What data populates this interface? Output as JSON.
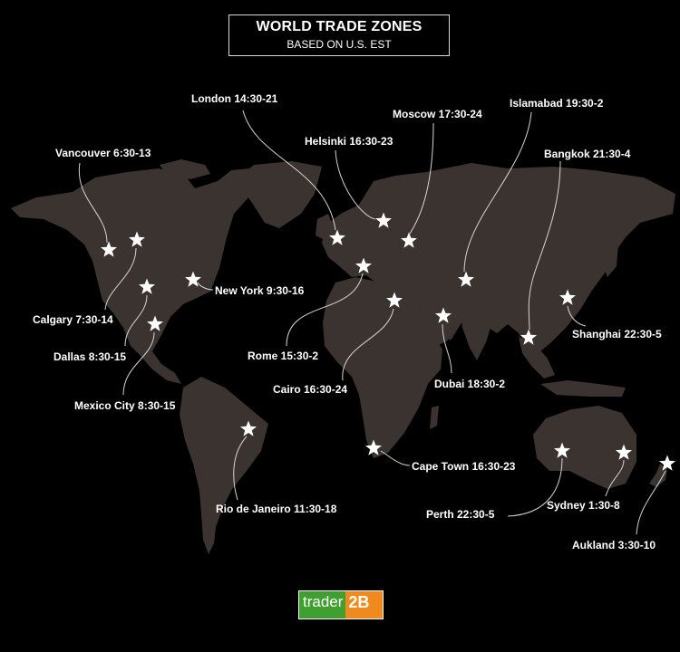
{
  "header": {
    "title": "WORLD TRADE ZONES",
    "subtitle": "BASED ON U.S. EST"
  },
  "map": {
    "background": "#000000",
    "land_color": "#3a3330",
    "marker_color": "#ffffff",
    "marker_icon": "star-icon"
  },
  "cities": [
    {
      "id": "vancouver",
      "label": "Vancouver  6:30-13"
    },
    {
      "id": "calgary",
      "label": "Calgary 7:30-14"
    },
    {
      "id": "dallas",
      "label": "Dallas  8:30-15"
    },
    {
      "id": "mexico-city",
      "label": "Mexico  City 8:30-15"
    },
    {
      "id": "new-york",
      "label": "New York 9:30-16"
    },
    {
      "id": "rio-de-janeiro",
      "label": "Rio de Janeiro  11:30-18"
    },
    {
      "id": "london",
      "label": "London  14:30-21"
    },
    {
      "id": "helsinki",
      "label": "Helsinki  16:30-23"
    },
    {
      "id": "moscow",
      "label": "Moscow  17:30-24"
    },
    {
      "id": "rome",
      "label": "Rome  15:30-2"
    },
    {
      "id": "cairo",
      "label": "Cairo  16:30-24"
    },
    {
      "id": "cape-town",
      "label": "Cape Town  16:30-23"
    },
    {
      "id": "dubai",
      "label": "Dubai  18:30-2"
    },
    {
      "id": "islamabad",
      "label": "Islamabad  19:30-2"
    },
    {
      "id": "bangkok",
      "label": "Bangkok  21:30-4"
    },
    {
      "id": "shanghai",
      "label": "Shanghai  22:30-5"
    },
    {
      "id": "perth",
      "label": "Perth  22:30-5"
    },
    {
      "id": "sydney",
      "label": "Sydney  1:30-8"
    },
    {
      "id": "aukland",
      "label": "Aukland  3:30-10"
    }
  ],
  "logo": {
    "part_a": "trader",
    "part_b": "2B",
    "color_a": "#3f9f2f",
    "color_b": "#f18a1c"
  }
}
